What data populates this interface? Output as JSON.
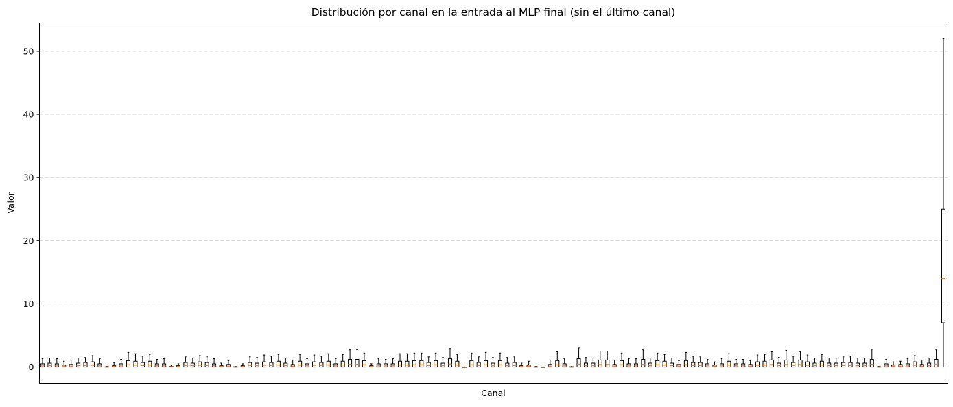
{
  "chart_data": {
    "type": "box",
    "title": "Distribución por canal en la entrada al MLP final (sin el último canal)",
    "xlabel": "Canal",
    "ylabel": "Valor",
    "ylim": [
      -2.6,
      54.5
    ],
    "yticks": [
      0,
      10,
      20,
      30,
      40,
      50
    ],
    "grid": "y, dashed",
    "x_tick_labels": "none",
    "box_edge_color": "#000000",
    "median_color": "#ff7f0e",
    "box_count": 127,
    "whisker_tops": [
      1.3,
      1.4,
      1.3,
      0.9,
      1.1,
      1.4,
      1.5,
      1.8,
      1.3,
      0.1,
      0.7,
      1.2,
      2.3,
      2.1,
      1.7,
      2.0,
      1.2,
      1.3,
      0.3,
      0.5,
      1.6,
      1.4,
      1.8,
      1.6,
      1.3,
      0.6,
      1.0,
      0.1,
      0.5,
      1.6,
      1.5,
      1.9,
      1.7,
      2.0,
      1.4,
      1.1,
      2.0,
      1.3,
      1.9,
      1.7,
      2.1,
      1.3,
      2.0,
      2.7,
      2.7,
      2.2,
      0.5,
      1.3,
      1.2,
      1.3,
      2.1,
      2.1,
      2.2,
      2.2,
      1.6,
      2.2,
      1.5,
      2.9,
      2.0,
      0.0,
      2.2,
      1.6,
      2.3,
      1.5,
      2.2,
      1.5,
      1.6,
      0.6,
      0.9,
      0.1,
      0.0,
      1.1,
      2.4,
      1.3,
      0.1,
      3.0,
      1.5,
      1.4,
      2.5,
      2.5,
      1.1,
      2.2,
      1.3,
      1.3,
      2.7,
      1.4,
      2.2,
      2.0,
      1.4,
      1.0,
      2.3,
      1.7,
      1.6,
      1.2,
      0.8,
      1.3,
      2.1,
      1.2,
      1.2,
      1.0,
      1.9,
      2.0,
      2.4,
      1.5,
      2.6,
      1.7,
      2.4,
      1.9,
      1.4,
      2.0,
      1.4,
      1.4,
      1.6,
      1.7,
      1.4,
      1.4,
      2.8,
      0.1,
      1.2,
      0.8,
      0.9,
      1.3,
      1.8,
      1.1,
      1.4,
      2.7,
      2.1
    ],
    "q3_values": [
      0.5,
      0.6,
      0.5,
      0.3,
      0.4,
      0.6,
      0.7,
      0.8,
      0.5,
      0.05,
      0.2,
      0.5,
      1.0,
      0.9,
      0.7,
      0.9,
      0.5,
      0.5,
      0.1,
      0.2,
      0.7,
      0.6,
      0.8,
      0.7,
      0.5,
      0.2,
      0.4,
      0.05,
      0.2,
      0.7,
      0.6,
      0.8,
      0.7,
      0.9,
      0.6,
      0.4,
      0.9,
      0.5,
      0.8,
      0.7,
      0.9,
      0.5,
      0.9,
      1.2,
      1.2,
      1.0,
      0.2,
      0.5,
      0.5,
      0.5,
      0.9,
      0.9,
      1.0,
      1.0,
      0.7,
      1.0,
      0.6,
      1.3,
      0.9,
      0.0,
      1.0,
      0.7,
      1.0,
      0.6,
      1.0,
      0.6,
      0.7,
      0.2,
      0.3,
      0.05,
      0.0,
      0.4,
      1.0,
      0.5,
      0.05,
      1.3,
      0.6,
      0.6,
      1.1,
      1.1,
      0.4,
      1.0,
      0.5,
      0.5,
      1.2,
      0.6,
      1.0,
      0.9,
      0.6,
      0.4,
      1.0,
      0.7,
      0.7,
      0.5,
      0.3,
      0.5,
      0.9,
      0.5,
      0.5,
      0.4,
      0.8,
      0.9,
      1.1,
      0.6,
      1.1,
      0.7,
      1.1,
      0.8,
      0.6,
      0.9,
      0.6,
      0.6,
      0.7,
      0.7,
      0.6,
      0.6,
      1.2,
      0.05,
      0.5,
      0.3,
      0.4,
      0.5,
      0.8,
      0.4,
      0.6,
      1.2,
      0.9
    ],
    "last_box": {
      "min": 0,
      "q1": 7,
      "median": 14,
      "q3": 25,
      "max": 52
    }
  }
}
